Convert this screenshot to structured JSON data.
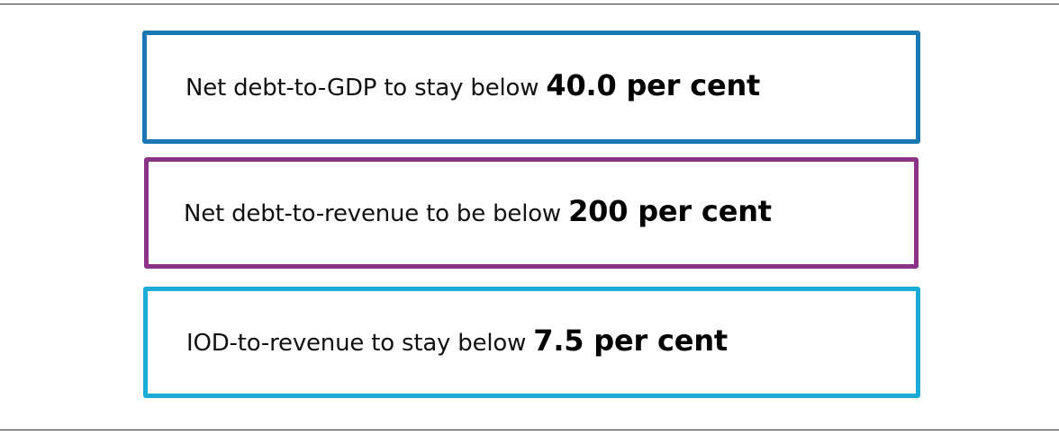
{
  "targets": [
    {
      "text": "Net debt-to-GDP to stay below ",
      "value": "40.0 per cent",
      "border_color": "#1a78b4"
    },
    {
      "text": "Net debt-to-revenue to be below ",
      "value": "200 per cent",
      "border_color": "#8a3389"
    },
    {
      "text": "IOD-to-revenue to stay below ",
      "value": "7.5 per cent",
      "border_color": "#1aabd6"
    }
  ]
}
